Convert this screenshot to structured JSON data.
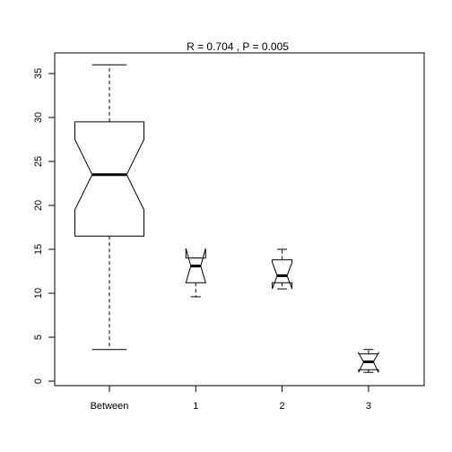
{
  "chart_data": {
    "type": "boxplot",
    "title": "R =  0.704 ,  P =  0.005",
    "xlabel": "",
    "ylabel": "",
    "ylim": [
      -0.5,
      37.5
    ],
    "yticks": [
      0,
      5,
      10,
      15,
      20,
      25,
      30,
      35
    ],
    "notched": true,
    "grid": false,
    "categories": [
      "Between",
      "1",
      "2",
      "3"
    ],
    "boxes": [
      {
        "category": "Between",
        "whisker_low": 3.6,
        "q1": 16.5,
        "median": 23.5,
        "q3": 29.5,
        "whisker_high": 36.0,
        "notch_low": 19.5,
        "notch_high": 27.5,
        "whisker_style": "dashed"
      },
      {
        "category": "1",
        "whisker_low": 9.6,
        "q1": 11.2,
        "median": 13.1,
        "q3": 14.0,
        "whisker_high": 14.0,
        "notch_low": 11.2,
        "notch_high": 15.1,
        "whisker_style": "dashed"
      },
      {
        "category": "2",
        "whisker_low": 10.5,
        "q1": 11.2,
        "median": 12.0,
        "q3": 13.8,
        "whisker_high": 15.0,
        "notch_low": 10.5,
        "notch_high": 13.5,
        "whisker_style": "dashed"
      },
      {
        "category": "3",
        "whisker_low": 1.0,
        "q1": 1.3,
        "median": 2.2,
        "q3": 3.1,
        "whisker_high": 3.6,
        "notch_low": 1.0,
        "notch_high": 3.2,
        "whisker_style": "dashed"
      }
    ]
  }
}
